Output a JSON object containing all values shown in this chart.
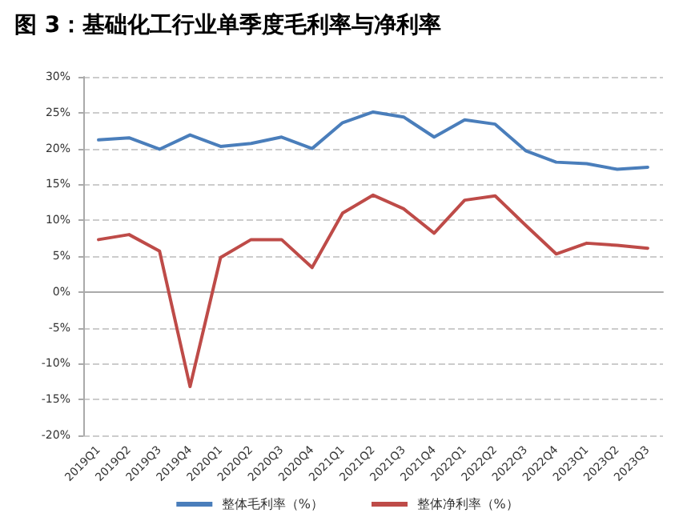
{
  "chart_data": {
    "type": "line",
    "title": "图 3：基础化工行业单季度毛利率与净利率",
    "categories": [
      "2019Q1",
      "2019Q2",
      "2019Q3",
      "2019Q4",
      "2020Q1",
      "2020Q2",
      "2020Q3",
      "2020Q4",
      "2021Q1",
      "2021Q2",
      "2021Q3",
      "2021Q4",
      "2022Q1",
      "2022Q2",
      "2022Q3",
      "2022Q4",
      "2023Q1",
      "2023Q2",
      "2023Q3"
    ],
    "series": [
      {
        "name": "整体毛利率（%）",
        "color": "#4a7ebb",
        "values": [
          21.2,
          21.5,
          19.9,
          21.9,
          20.3,
          20.7,
          21.6,
          20.0,
          23.6,
          25.1,
          24.4,
          21.6,
          24.0,
          23.4,
          19.7,
          18.1,
          17.9,
          17.1,
          17.4
        ]
      },
      {
        "name": "整体净利率（%）",
        "color": "#be4b48",
        "values": [
          7.3,
          8.0,
          5.7,
          -13.2,
          4.8,
          7.3,
          7.3,
          3.4,
          11.0,
          13.5,
          11.6,
          8.2,
          12.8,
          13.4,
          9.3,
          5.3,
          6.8,
          6.5,
          6.1
        ]
      }
    ],
    "ylim": [
      -20,
      30
    ],
    "yticks": [
      {
        "value": -20,
        "label": "-20%"
      },
      {
        "value": -15,
        "label": "-15%"
      },
      {
        "value": -10,
        "label": "-10%"
      },
      {
        "value": -5,
        "label": "-5%"
      },
      {
        "value": 0,
        "label": "0%"
      },
      {
        "value": 5,
        "label": "5%"
      },
      {
        "value": 10,
        "label": "10%"
      },
      {
        "value": 15,
        "label": "15%"
      },
      {
        "value": 20,
        "label": "20%"
      },
      {
        "value": 25,
        "label": "25%"
      },
      {
        "value": 30,
        "label": "30%"
      }
    ],
    "grid": "y",
    "legend": "bottom",
    "marker": "none",
    "line_style": "solid"
  }
}
